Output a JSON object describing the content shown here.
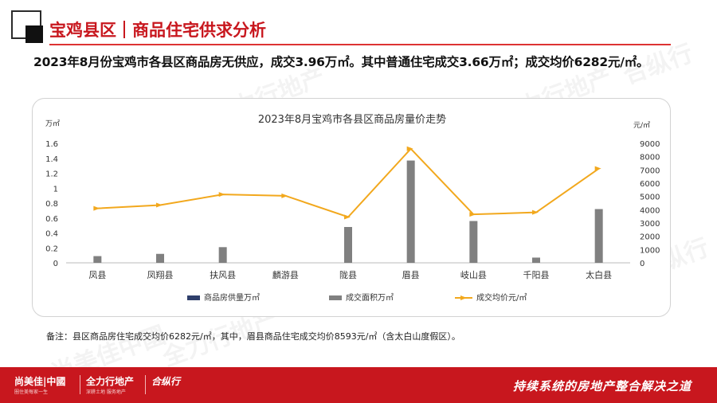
{
  "header": {
    "title_part1": "宝鸡县区",
    "title_part2": "商品住宅供求分析"
  },
  "headline": "2023年8月份宝鸡市各县区商品房无供应，成交3.96万㎡。其中普通住宅成交3.66万㎡；成交均价6282元/㎡。",
  "note": "备注：县区商品房住宅成交均价6282元/㎡，其中，眉县商品住宅成交均价8593元/㎡（含太白山度假区）。",
  "footer": {
    "brand1": "尚美佳|中國",
    "brand1_sub": "圈住美每家一生",
    "brand2": "全力行地产",
    "brand2_sub": "深耕土地 服务地产",
    "brand3": "合纵行",
    "slogan": "持续系统的房地产整合解决之道"
  },
  "watermarks": [
    "尚美佳中國",
    "全力行地产",
    "合纵行"
  ],
  "colors": {
    "accent": "#c8171e",
    "supply": "#2f3f6b",
    "area": "#808080",
    "price": "#f2a81d"
  },
  "chart_data": {
    "type": "bar",
    "title": "2023年8月宝鸡市各县区商品房量价走势",
    "y_left_unit": "万㎡",
    "y_right_unit": "元/㎡",
    "categories": [
      "凤县",
      "凤翔县",
      "扶风县",
      "麟游县",
      "陇县",
      "眉县",
      "岐山县",
      "千阳县",
      "太白县"
    ],
    "y_left_ticks": [
      "0",
      "0.2",
      "0.4",
      "0.6",
      "0.8",
      "1",
      "1.2",
      "1.4",
      "1.6"
    ],
    "y_right_ticks": [
      "0",
      "1000",
      "2000",
      "3000",
      "4000",
      "5000",
      "6000",
      "7000",
      "8000",
      "9000"
    ],
    "ylim_left": [
      0,
      1.6
    ],
    "ylim_right": [
      0,
      9000
    ],
    "legend_position": "bottom",
    "series": [
      {
        "name": "商品房供量万㎡",
        "kind": "bar",
        "axis": "left",
        "values": [
          0,
          0,
          0,
          0,
          0,
          0,
          0,
          0,
          0
        ]
      },
      {
        "name": "成交面积万㎡",
        "kind": "bar",
        "axis": "left",
        "values": [
          0.09,
          0.12,
          0.21,
          0,
          0.48,
          1.37,
          0.56,
          0.07,
          0.72
        ]
      },
      {
        "name": "成交均价元/㎡",
        "kind": "line",
        "axis": "right",
        "values": [
          4100,
          4350,
          5150,
          5050,
          3450,
          8593,
          3650,
          3800,
          7100
        ]
      }
    ]
  }
}
